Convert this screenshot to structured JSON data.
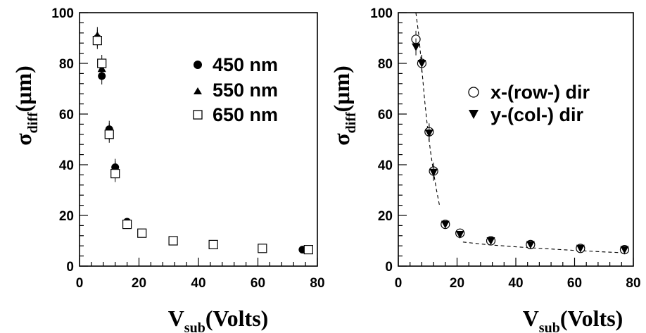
{
  "chart_data": [
    {
      "type": "scatter",
      "title": "",
      "xlabel": {
        "main": "V",
        "sub": "sub",
        "rest": "(Volts)"
      },
      "ylabel": {
        "main": "σ",
        "sub": "diff",
        "rest": "(μm)"
      },
      "xlim": [
        0,
        80
      ],
      "ylim": [
        0,
        100
      ],
      "xticks": [
        "0",
        "20",
        "40",
        "60",
        "80"
      ],
      "yticks": [
        "0",
        "20",
        "40",
        "60",
        "80",
        "100"
      ],
      "grid": false,
      "legend_position": "top-right",
      "series": [
        {
          "name": "450 nm",
          "marker": "filled-circle",
          "x": [
            6,
            7.5,
            10,
            12,
            16,
            21,
            31.5,
            45,
            61.5,
            75
          ],
          "y": [
            90,
            75,
            54,
            39,
            17.5,
            13,
            10,
            8.5,
            7,
            6.5
          ]
        },
        {
          "name": "550 nm",
          "marker": "filled-triangle",
          "x": [
            6,
            7.5,
            10,
            12,
            16,
            21,
            31.5,
            45,
            61.5,
            76
          ],
          "y": [
            91,
            78,
            53,
            38,
            17,
            13,
            10,
            8.5,
            7,
            6.5
          ]
        },
        {
          "name": "650 nm",
          "marker": "open-square",
          "x": [
            6,
            7.5,
            10,
            12,
            16,
            21,
            31.5,
            45,
            61.5,
            77
          ],
          "y": [
            89,
            80,
            52,
            36.5,
            16.5,
            13,
            10,
            8.5,
            7,
            6.5
          ]
        }
      ]
    },
    {
      "type": "scatter",
      "title": "",
      "xlabel": {
        "main": "V",
        "sub": "sub",
        "rest": "(Volts)"
      },
      "ylabel": {
        "main": "σ",
        "sub": "diff",
        "rest": "(μm)"
      },
      "xlim": [
        0,
        80
      ],
      "ylim": [
        0,
        100
      ],
      "xticks": [
        "0",
        "20",
        "40",
        "60",
        "80"
      ],
      "yticks": [
        "0",
        "20",
        "40",
        "60",
        "80",
        "100"
      ],
      "grid": false,
      "legend_position": "top-right",
      "series": [
        {
          "name": "x-(row-) dir",
          "marker": "open-circle",
          "x": [
            6,
            8,
            10.5,
            12,
            16,
            21,
            31.5,
            45,
            62,
            77
          ],
          "y": [
            89.5,
            80,
            53,
            37.5,
            16.5,
            13,
            10,
            8.5,
            7,
            6.5
          ]
        },
        {
          "name": "y-(col-) dir",
          "marker": "filled-down-triangle",
          "x": [
            6,
            8,
            10.5,
            12,
            16,
            21,
            31.5,
            45,
            62,
            77
          ],
          "y": [
            86.5,
            80,
            52.5,
            37,
            16.5,
            12.5,
            10,
            8.5,
            7,
            6.5
          ]
        }
      ],
      "fit_curves": [
        {
          "style": "dashed",
          "x": [
            6,
            7,
            8,
            9,
            10,
            11,
            12,
            13,
            14
          ],
          "y": [
            100,
            91,
            78,
            65,
            54,
            45,
            37,
            30,
            24
          ]
        },
        {
          "style": "dashed",
          "x": [
            22,
            30,
            40,
            50,
            60,
            70,
            78
          ],
          "y": [
            9.5,
            8.5,
            7.6,
            6.9,
            6.2,
            5.6,
            5.2
          ]
        }
      ]
    }
  ]
}
